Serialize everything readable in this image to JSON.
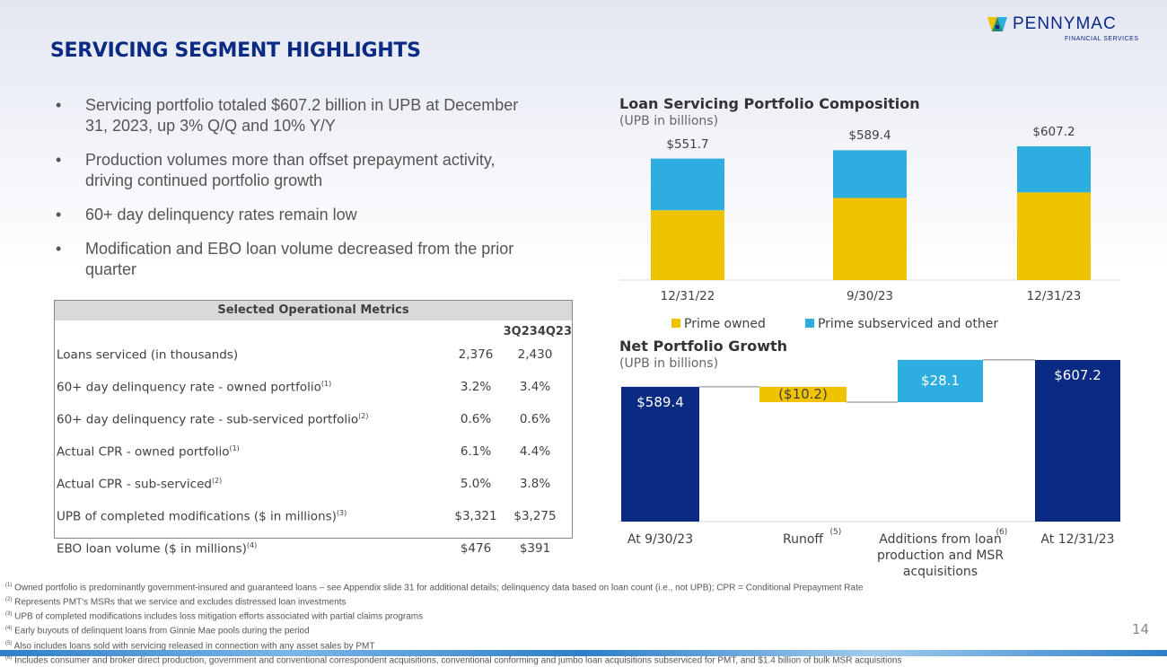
{
  "header": {
    "title": "SERVICING SEGMENT HIGHLIGHTS",
    "logo_name": "PENNYMAC",
    "logo_sub": "FINANCIAL SERVICES",
    "logo_mark": "®"
  },
  "bullets": [
    "Servicing portfolio totaled $607.2 billion in UPB at December 31, 2023, up 3% Q/Q and 10% Y/Y",
    "Production volumes more than offset prepayment activity, driving continued portfolio growth",
    "60+ day delinquency rates remain low",
    "Modification and EBO loan volume decreased from the prior quarter"
  ],
  "table": {
    "title": "Selected Operational Metrics",
    "columns": [
      "3Q23",
      "4Q23"
    ],
    "rows": [
      {
        "label": "Loans serviced (in thousands)",
        "note": "",
        "v": [
          "2,376",
          "2,430"
        ]
      },
      {
        "label": "60+ day delinquency rate - owned portfolio",
        "note": "(1)",
        "v": [
          "3.2%",
          "3.4%"
        ]
      },
      {
        "label": "60+ day delinquency rate - sub-serviced portfolio",
        "note": "(2)",
        "v": [
          "0.6%",
          "0.6%"
        ]
      },
      {
        "label": "Actual CPR - owned portfolio",
        "note": "(1)",
        "v": [
          "6.1%",
          "4.4%"
        ]
      },
      {
        "label": "Actual CPR - sub-serviced",
        "note": "(2)",
        "v": [
          "5.0%",
          "3.8%"
        ]
      },
      {
        "label": "UPB of completed modifications ($ in millions)",
        "note": "(3)",
        "v": [
          "$3,321",
          "$3,275"
        ]
      },
      {
        "label": "EBO loan volume ($ in millions)",
        "note": "(4)",
        "v": [
          "$476",
          "$391"
        ]
      }
    ]
  },
  "chart_data": [
    {
      "type": "bar",
      "stacked": true,
      "title": "Loan Servicing Portfolio Composition",
      "subtitle": "(UPB in billions)",
      "categories": [
        "12/31/22",
        "9/30/23",
        "12/31/23"
      ],
      "series": [
        {
          "name": "Prime owned",
          "color": "#f0c300",
          "values": [
            317,
            373,
            398
          ]
        },
        {
          "name": "Prime subserviced and other",
          "color": "#2eaee0",
          "values": [
            234.7,
            216.4,
            209.2
          ]
        }
      ],
      "totals": [
        "$551.7",
        "$589.4",
        "$607.2"
      ],
      "total_values": [
        551.7,
        589.4,
        607.2
      ],
      "ylim": [
        0,
        650
      ],
      "grid": false,
      "legend": "bottom"
    },
    {
      "type": "waterfall",
      "title": "Net Portfolio Growth",
      "subtitle": "(UPB in billions)",
      "categories": [
        {
          "label": "At 9/30/23",
          "note": ""
        },
        {
          "label": "Runoff",
          "note": "(5)"
        },
        {
          "label": "Additions from loan production and MSR acquisitions",
          "note": "(6)"
        },
        {
          "label": "At 12/31/23",
          "note": ""
        }
      ],
      "values": [
        589.4,
        -10.2,
        28.1,
        607.2
      ],
      "kinds": [
        "total",
        "delta",
        "delta",
        "total"
      ],
      "labels": [
        "$589.4",
        "($10.2)",
        "$28.1",
        "$607.2"
      ],
      "colors": [
        "#0b2a84",
        "#f0c300",
        "#2eaee0",
        "#0b2a84"
      ],
      "ylim": [
        500,
        610
      ],
      "grid": false
    }
  ],
  "footnotes": [
    {
      "n": "(1)",
      "t": "Owned portfolio is predominantly government-insured and guaranteed loans – see Appendix slide 31 for additional details; delinquency data based on loan count (i.e., not UPB); CPR = Conditional Prepayment Rate"
    },
    {
      "n": "(2)",
      "t": "Represents PMT's MSRs that we service and excludes distressed loan investments"
    },
    {
      "n": "(3)",
      "t": "UPB of completed modifications includes loss mitigation efforts associated with partial claims programs"
    },
    {
      "n": "(4)",
      "t": "Early buyouts of delinquent loans from Ginnie Mae pools during the period"
    },
    {
      "n": "(5)",
      "t": "Also includes loans sold with servicing released in connection with any asset sales by PMT"
    },
    {
      "n": "(6)",
      "t": "Includes consumer and broker direct production, government and conventional correspondent acquisitions, conventional conforming and jumbo loan acquisitions subserviced for PMT, and $1.4 billion of bulk MSR acquisitions"
    }
  ],
  "page_number": "14"
}
